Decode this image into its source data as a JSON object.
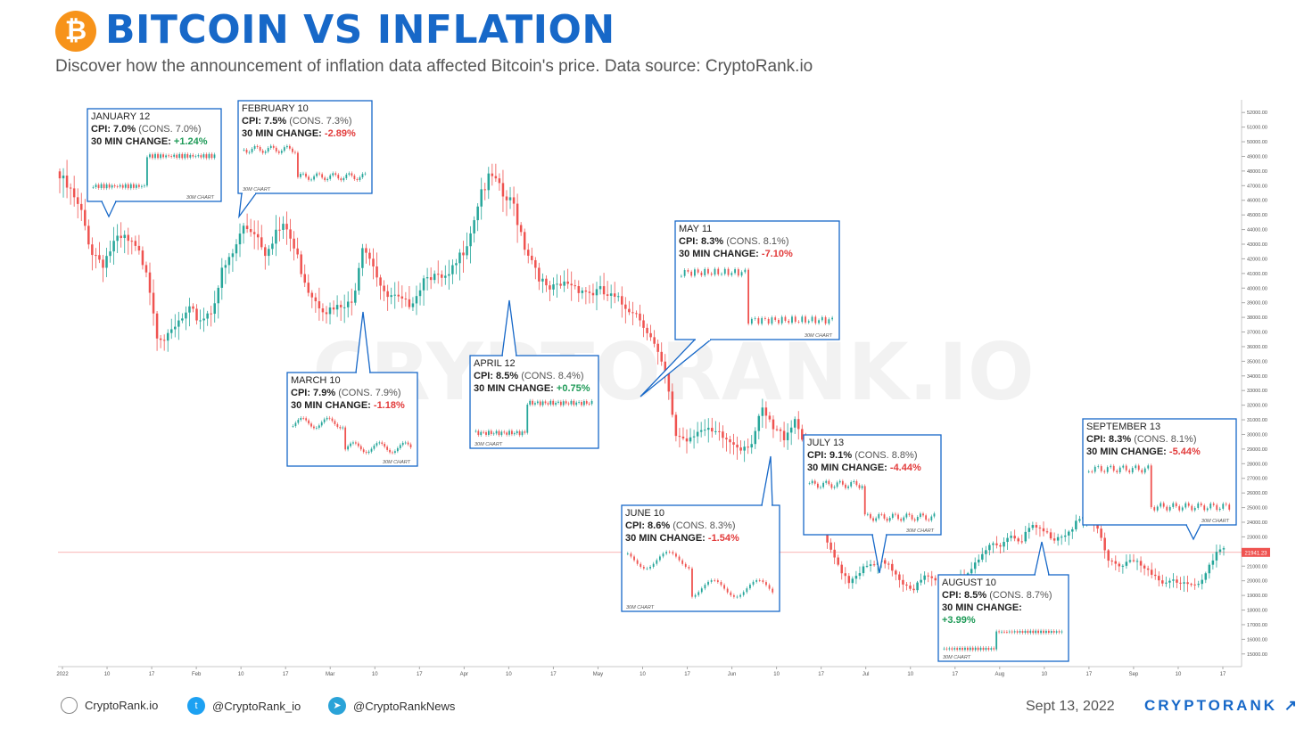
{
  "header": {
    "logo_glyph": "₿",
    "title": "BITCOIN VS INFLATION",
    "subtitle": "Discover how the announcement of inflation data affected Bitcoin's price. Data source: CryptoRank.io"
  },
  "watermark": "CRYPTORANK.IO",
  "footer": {
    "website": "CryptoRank.io",
    "twitter": "@CryptoRank_io",
    "telegram": "@CryptoRankNews",
    "date": "Sept 13, 2022",
    "brand": "CRYPTORANK ↗"
  },
  "colors": {
    "up": "#26a69a",
    "down": "#ef5350",
    "accent": "#1768c8",
    "current_price_line": "#ef5350"
  },
  "chart_data": {
    "type": "candlestick",
    "series_name": "BTC/USD",
    "ylim": [
      14500,
      52500
    ],
    "y_ticks": [
      15000,
      16000,
      17000,
      18000,
      19000,
      20000,
      21000,
      22000,
      23000,
      24000,
      25000,
      26000,
      27000,
      28000,
      29000,
      30000,
      31000,
      32000,
      33000,
      34000,
      35000,
      36000,
      37000,
      38000,
      39000,
      40000,
      41000,
      42000,
      43000,
      44000,
      45000,
      46000,
      47000,
      48000,
      49000,
      50000,
      51000,
      52000
    ],
    "current_price": {
      "value": 21941.0,
      "label": "21941.23"
    },
    "x_ticks": [
      "2022",
      "10",
      "17",
      "Feb",
      "10",
      "17",
      "Mar",
      "10",
      "17",
      "Apr",
      "10",
      "17",
      "May",
      "10",
      "17",
      "Jun",
      "10",
      "17",
      "Jul",
      "10",
      "17",
      "Aug",
      "10",
      "17",
      "Sep",
      "10",
      "17"
    ],
    "price_path": [
      [
        0,
        47500
      ],
      [
        3,
        46500
      ],
      [
        6,
        45000
      ],
      [
        9,
        42500
      ],
      [
        12,
        41800
      ],
      [
        15,
        43000
      ],
      [
        18,
        43300
      ],
      [
        21,
        42600
      ],
      [
        24,
        41500
      ],
      [
        27,
        37000
      ],
      [
        30,
        36500
      ],
      [
        33,
        37600
      ],
      [
        36,
        38300
      ],
      [
        39,
        37900
      ],
      [
        42,
        38500
      ],
      [
        45,
        41000
      ],
      [
        48,
        42300
      ],
      [
        51,
        44200
      ],
      [
        54,
        44000
      ],
      [
        57,
        42600
      ],
      [
        60,
        43900
      ],
      [
        63,
        44000
      ],
      [
        66,
        42000
      ],
      [
        69,
        40000
      ],
      [
        72,
        39000
      ],
      [
        75,
        38400
      ],
      [
        78,
        38600
      ],
      [
        81,
        38800
      ],
      [
        84,
        43200
      ],
      [
        87,
        41800
      ],
      [
        90,
        39400
      ],
      [
        93,
        39200
      ],
      [
        96,
        38800
      ],
      [
        99,
        39700
      ],
      [
        102,
        41200
      ],
      [
        105,
        40500
      ],
      [
        108,
        40600
      ],
      [
        111,
        42100
      ],
      [
        114,
        44000
      ],
      [
        117,
        46800
      ],
      [
        120,
        47500
      ],
      [
        123,
        46200
      ],
      [
        126,
        45600
      ],
      [
        129,
        43000
      ],
      [
        132,
        41500
      ],
      [
        135,
        39800
      ],
      [
        138,
        39900
      ],
      [
        141,
        40400
      ],
      [
        144,
        40100
      ],
      [
        147,
        39700
      ],
      [
        150,
        39700
      ],
      [
        153,
        39300
      ],
      [
        156,
        38900
      ],
      [
        159,
        38600
      ],
      [
        162,
        37700
      ],
      [
        165,
        36000
      ],
      [
        168,
        34000
      ],
      [
        171,
        30000
      ],
      [
        174,
        29700
      ],
      [
        177,
        30400
      ],
      [
        180,
        30100
      ],
      [
        183,
        29900
      ],
      [
        186,
        29500
      ],
      [
        189,
        29200
      ],
      [
        192,
        29500
      ],
      [
        195,
        31600
      ],
      [
        198,
        30300
      ],
      [
        201,
        29900
      ],
      [
        204,
        31100
      ],
      [
        207,
        29300
      ],
      [
        210,
        26700
      ],
      [
        213,
        22400
      ],
      [
        216,
        21100
      ],
      [
        219,
        20000
      ],
      [
        222,
        20700
      ],
      [
        225,
        21000
      ],
      [
        228,
        21200
      ],
      [
        231,
        20800
      ],
      [
        234,
        19900
      ],
      [
        237,
        19500
      ],
      [
        240,
        20200
      ],
      [
        243,
        20000
      ],
      [
        246,
        19700
      ],
      [
        249,
        20300
      ],
      [
        252,
        20600
      ],
      [
        255,
        21200
      ],
      [
        258,
        22400
      ],
      [
        261,
        22600
      ],
      [
        264,
        23100
      ],
      [
        267,
        22900
      ],
      [
        270,
        23700
      ],
      [
        273,
        23300
      ],
      [
        276,
        22900
      ],
      [
        279,
        23300
      ],
      [
        282,
        24000
      ],
      [
        285,
        24400
      ],
      [
        288,
        23500
      ],
      [
        291,
        21500
      ],
      [
        294,
        21100
      ],
      [
        297,
        21400
      ],
      [
        300,
        21000
      ],
      [
        303,
        20300
      ],
      [
        306,
        20000
      ],
      [
        309,
        20100
      ],
      [
        312,
        19800
      ],
      [
        315,
        19500
      ],
      [
        318,
        20300
      ],
      [
        321,
        22000
      ],
      [
        323,
        22400
      ]
    ],
    "annotations": [
      {
        "date": "JANUARY 12",
        "cpi": "7.0%",
        "cons": "7.0%",
        "change": "+1.24%",
        "direction": "up",
        "mini_label": "30M CHART"
      },
      {
        "date": "FEBRUARY 10",
        "cpi": "7.5%",
        "cons": "7.3%",
        "change": "-2.89%",
        "direction": "down",
        "mini_label": "30M CHART"
      },
      {
        "date": "MARCH 10",
        "cpi": "7.9%",
        "cons": "7.9%",
        "change": "-1.18%",
        "direction": "down",
        "mini_label": "30M CHART"
      },
      {
        "date": "APRIL 12",
        "cpi": "8.5%",
        "cons": "8.4%",
        "change": "+0.75%",
        "direction": "up",
        "mini_label": "30M CHART"
      },
      {
        "date": "MAY 11",
        "cpi": "8.3%",
        "cons": "8.1%",
        "change": "-7.10%",
        "direction": "down",
        "mini_label": "30M CHART"
      },
      {
        "date": "JUNE 10",
        "cpi": "8.6%",
        "cons": "8.3%",
        "change": "-1.54%",
        "direction": "down",
        "mini_label": "30M CHART"
      },
      {
        "date": "JULY 13",
        "cpi": "9.1%",
        "cons": "8.8%",
        "change": "-4.44%",
        "direction": "down",
        "mini_label": "30M CHART"
      },
      {
        "date": "AUGUST 10",
        "cpi": "8.5%",
        "cons": "8.7%",
        "change": "+3.99%",
        "direction": "up",
        "mini_label": "30M CHART"
      },
      {
        "date": "SEPTEMBER 13",
        "cpi": "8.3%",
        "cons": "8.1%",
        "change": "-5.44%",
        "direction": "down",
        "mini_label": "30M CHART"
      }
    ]
  }
}
